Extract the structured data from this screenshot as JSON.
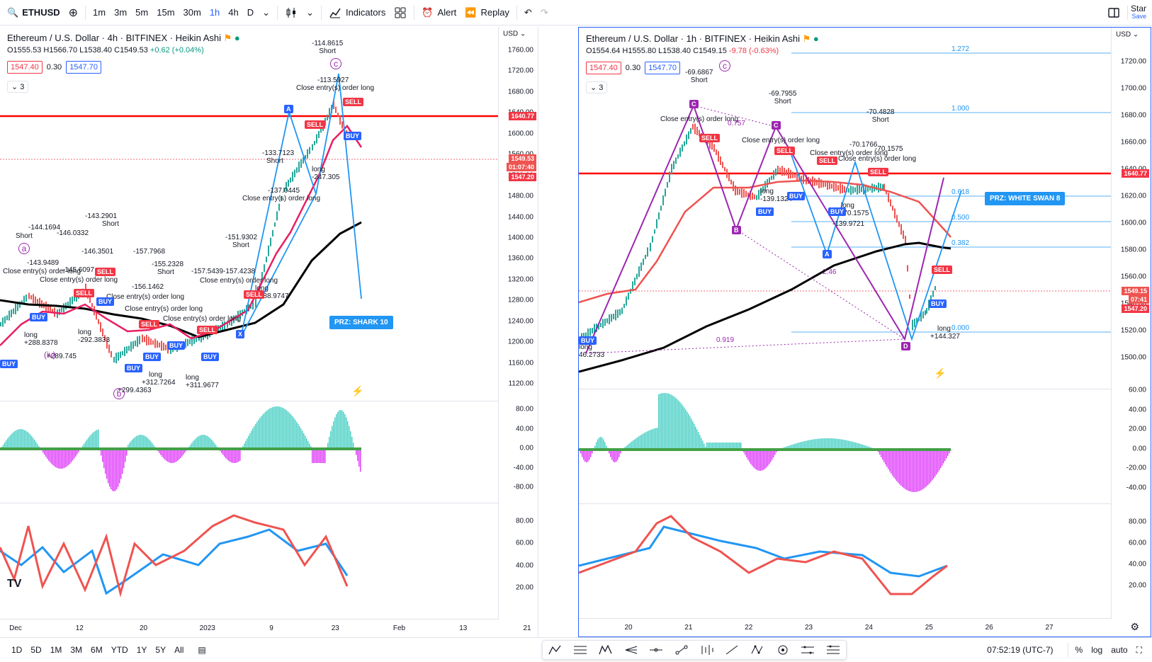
{
  "toolbar": {
    "symbol": "ETHUSD",
    "intervals": [
      "1m",
      "3m",
      "5m",
      "15m",
      "30m",
      "1h",
      "4h",
      "D"
    ],
    "active_interval": "1h",
    "indicators_label": "Indicators",
    "alert_label": "Alert",
    "replay_label": "Replay",
    "star_label": "Star",
    "save_label": "Save"
  },
  "left_chart": {
    "title": "Ethereum / U.S. Dollar · 4h · BITFINEX · Heikin Ashi",
    "ohlc": {
      "o": "O1555.53",
      "h": "H1566.70",
      "l": "L1538.40",
      "c": "C1549.53",
      "chg": "+0.62 (+0.04%)"
    },
    "bid": "1547.40",
    "spread": "0.30",
    "ask": "1547.70",
    "indicator_count": "3",
    "y_ticks": [
      "1760.00",
      "1720.00",
      "1680.00",
      "1640.00",
      "1600.00",
      "1560.00",
      "1520.00",
      "1480.00",
      "1440.00",
      "1400.00",
      "1360.00",
      "1320.00",
      "1280.00",
      "1240.00",
      "1200.00",
      "1160.00",
      "1120.00"
    ],
    "price_labels": {
      "line": "1640.77",
      "last": "1549.53",
      "countdown": "01:07:40",
      "bid": "1547.20"
    },
    "osc1_ticks": [
      "80.00",
      "40.00",
      "0.00",
      "-40.00",
      "-80.00"
    ],
    "osc2_ticks": [
      "80.00",
      "60.00",
      "40.00",
      "20.00"
    ],
    "x_ticks": [
      "Dec",
      "12",
      "20",
      "2023",
      "9",
      "23",
      "Feb",
      "13",
      "21"
    ],
    "prz_label": "PRZ: SHARK 10",
    "annotations": {
      "top_short": "-114.8615",
      "short": "Short",
      "close_long": "Close entry(s) order long",
      "v1": "-113.5927",
      "v2": "-133.7123",
      "v3": "-137.0445",
      "v4": "-151.9302",
      "v5": "-143.2901",
      "v6": "-157.7968",
      "v7": "-155.2328",
      "v8": "-157.5439",
      "v9": "-157.4238",
      "v10": "-156.1462",
      "v11": "-144.1694",
      "v12": "-146.0332",
      "v13": "-146.3501",
      "v14": "-143.9489",
      "v15": "-145.6097",
      "long": "long",
      "l1": "-247.305",
      "l2": "+288.9747",
      "l3": "+288.8378",
      "l4": "+289.745",
      "l5": "+299.4363",
      "l6": "+312.7264",
      "l7": "+311.9677",
      "l8": "-292.3833",
      "wave_a": "a",
      "wave_b": "b",
      "wave_c": "c",
      "wave_iv": "(iv)",
      "x": "X",
      "A": "A",
      "sell": "SELL",
      "buy": "BUY"
    }
  },
  "right_chart": {
    "title": "Ethereum / U.S. Dollar · 1h · BITFINEX · Heikin Ashi",
    "ohlc": {
      "o": "O1554.64",
      "h": "H1555.80",
      "l": "L1538.40",
      "c": "C1549.15",
      "chg": "-9.78 (-0.63%)"
    },
    "bid": "1547.40",
    "spread": "0.30",
    "ask": "1547.70",
    "indicator_count": "3",
    "y_ticks": [
      "1720.00",
      "1700.00",
      "1680.00",
      "1660.00",
      "1640.00",
      "1620.00",
      "1600.00",
      "1580.00",
      "1560.00",
      "1540.00",
      "1520.00",
      "1500.00"
    ],
    "price_labels": {
      "line": "1640.77",
      "last": "1549.15",
      "countdown": "07:41",
      "bid": "1547.20"
    },
    "osc1_ticks": [
      "60.00",
      "40.00",
      "20.00",
      "0.00",
      "-20.00",
      "-40.00"
    ],
    "osc2_ticks": [
      "80.00",
      "60.00",
      "40.00",
      "20.00"
    ],
    "x_ticks": [
      "20",
      "21",
      "22",
      "23",
      "24",
      "25",
      "26",
      "27"
    ],
    "fib_levels": [
      "1.272",
      "1.000",
      "0.618",
      "0.500",
      "0.382",
      "0.000"
    ],
    "prz_label": "PRZ: WHITE SWAN 8",
    "annotations": {
      "s1": "-69.6867",
      "s2": "-69.7955",
      "s3": "-70.4828",
      "s4": "-70.1766",
      "s5": "-70.1575",
      "short": "Short",
      "close_long": "Close entry(s) order long",
      "l1": "-139.1324",
      "l2": "-139.9721",
      "l3": "+144.327",
      "l4": "46.2733",
      "l5": "-70.1575",
      "long": "long",
      "r1": "0.919",
      "r2": "2.46",
      "r3": "0.757",
      "pB": "B",
      "pC": "C",
      "pA": "A",
      "pD": "D",
      "wave_c": "c",
      "sell": "SELL",
      "buy": "BUY"
    }
  },
  "bottom": {
    "ranges": [
      "1D",
      "5D",
      "1M",
      "3M",
      "6M",
      "YTD",
      "1Y",
      "5Y",
      "All"
    ],
    "time": "07:52:19 (UTC-7)",
    "pct": "%",
    "log": "log",
    "auto": "auto"
  },
  "colors": {
    "up": "#26a69a",
    "down": "#ef5350",
    "accent": "#2962ff",
    "line_red": "#ff0000",
    "purple": "#9c27b0"
  }
}
